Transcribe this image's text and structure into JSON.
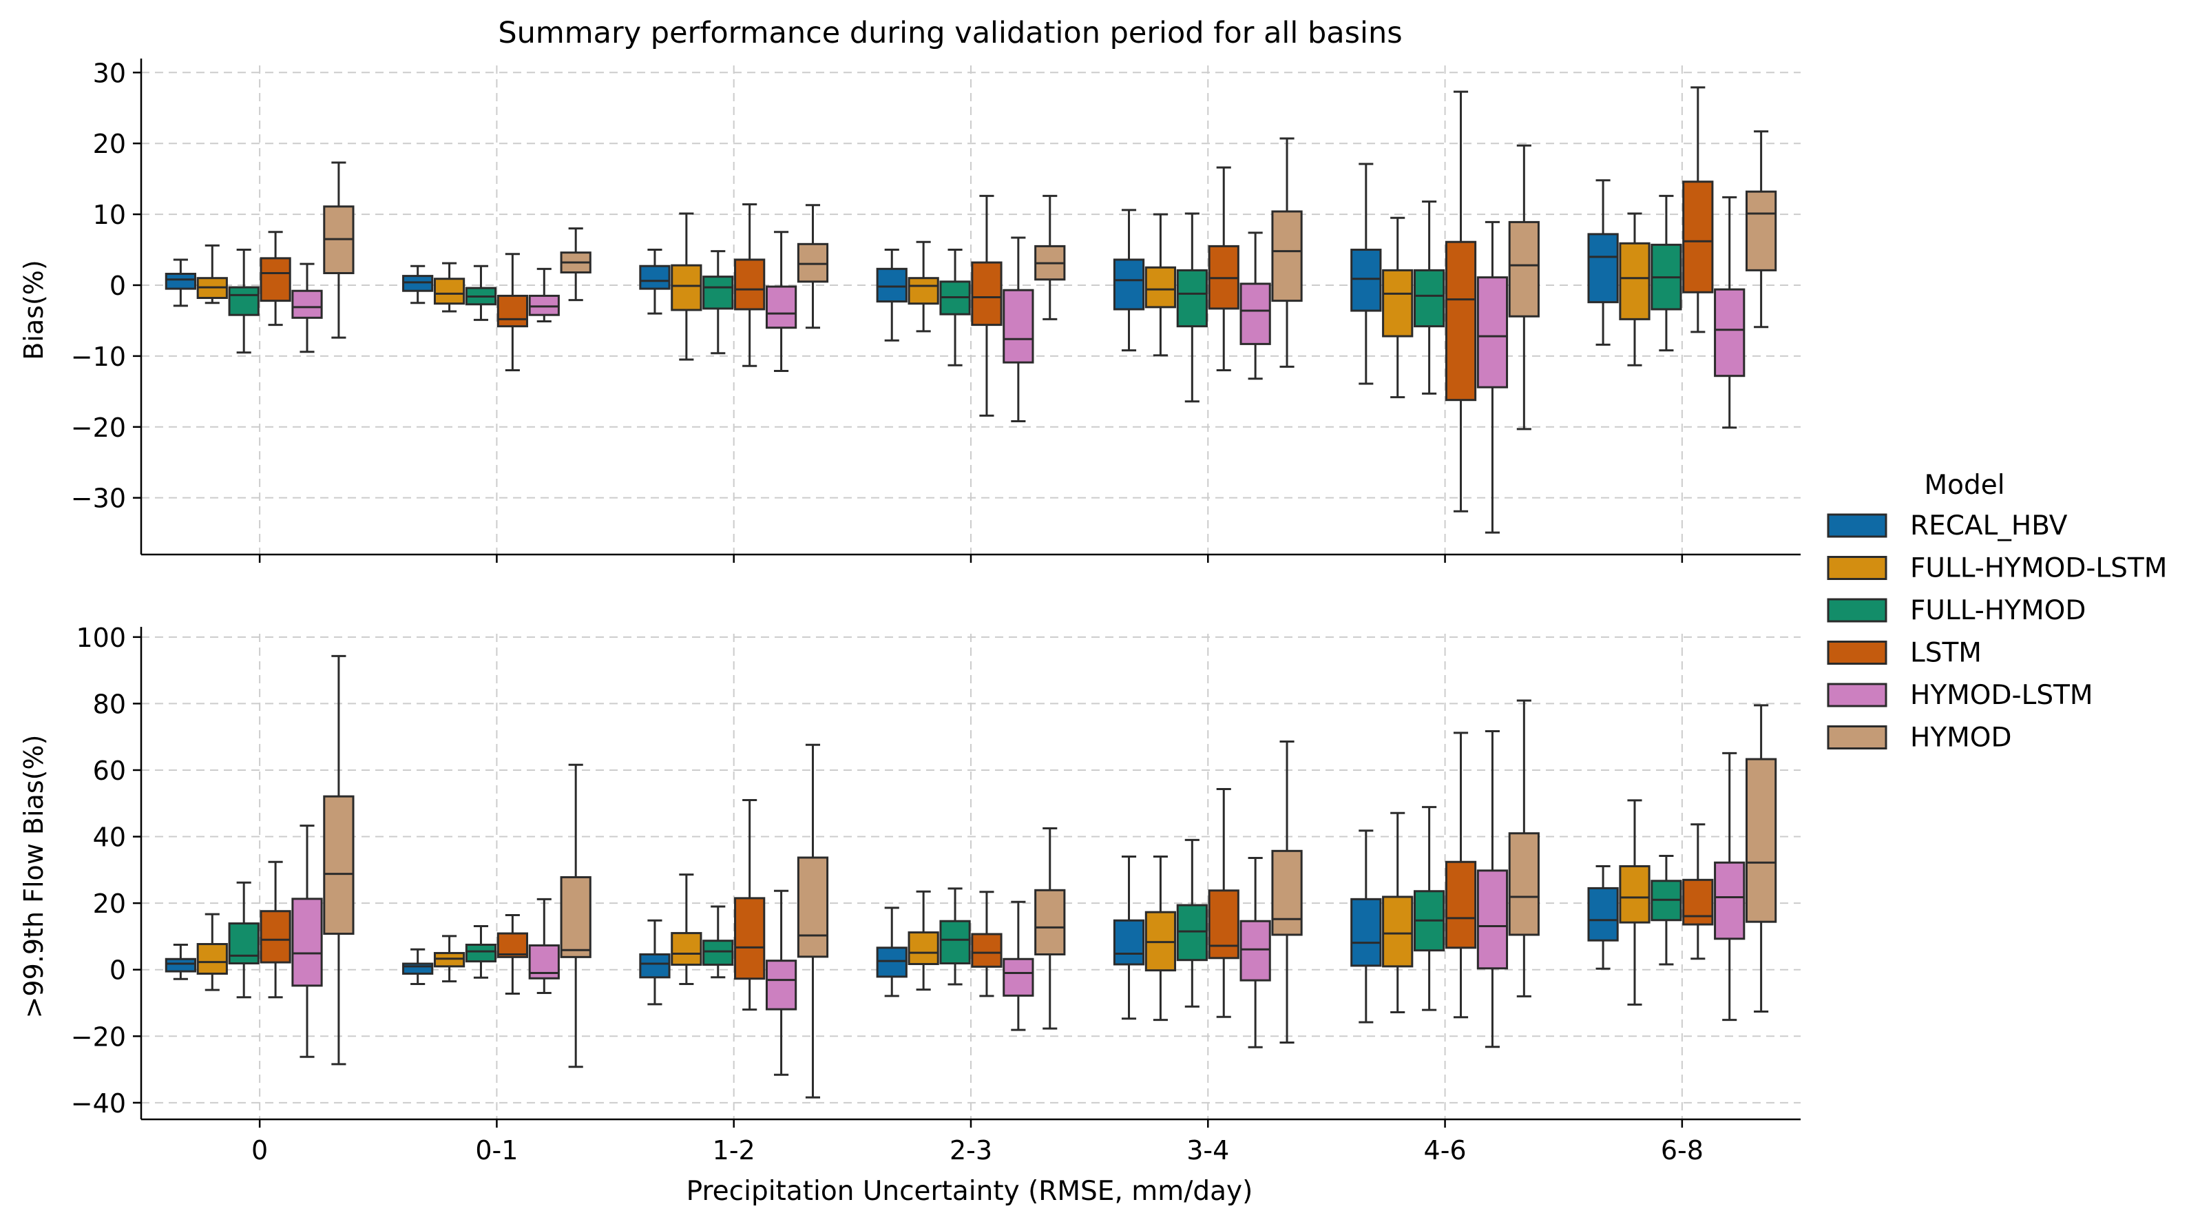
{
  "chart_data": {
    "type": "box",
    "title": "Summary performance during validation period for all basins",
    "xlabel": "Precipitation Uncertainty (RMSE, mm/day)",
    "categories": [
      "0",
      "0-1",
      "1-2",
      "2-3",
      "3-4",
      "4-6",
      "6-8"
    ],
    "legend": {
      "title": "Model",
      "placement": "right",
      "entries": [
        {
          "name": "RECAL_HBV",
          "color": "#0f6aa5"
        },
        {
          "name": "FULL-HYMOD-LSTM",
          "color": "#d38e11"
        },
        {
          "name": "FULL-HYMOD",
          "color": "#138d69"
        },
        {
          "name": "LSTM",
          "color": "#c45b0e"
        },
        {
          "name": "HYMOD-LSTM",
          "color": "#cc80c0"
        },
        {
          "name": "HYMOD",
          "color": "#c49b76"
        }
      ]
    },
    "grid": true,
    "panels": [
      {
        "ylabel": "Bias(%)",
        "ylim": [
          -38,
          31
        ],
        "yticks": [
          -30,
          -20,
          -10,
          0,
          10,
          20,
          30
        ],
        "ytick_labels": [
          "−30",
          "−20",
          "−10",
          "0",
          "10",
          "20",
          "30"
        ],
        "series": [
          {
            "name": "RECAL_HBV",
            "boxes": [
              [
                -2.9,
                -0.5,
                0.8,
                1.6,
                3.6
              ],
              [
                -2.5,
                -0.8,
                0.4,
                1.3,
                2.7
              ],
              [
                -4.0,
                -0.5,
                0.6,
                2.7,
                5.0
              ],
              [
                -7.8,
                -2.3,
                -0.2,
                2.3,
                5.0
              ],
              [
                -9.2,
                -3.4,
                0.7,
                3.6,
                10.6
              ],
              [
                -13.9,
                -3.6,
                0.9,
                5.0,
                17.1
              ],
              [
                -8.4,
                -2.4,
                4.0,
                7.2,
                14.8
              ]
            ]
          },
          {
            "name": "FULL-HYMOD-LSTM",
            "boxes": [
              [
                -2.5,
                -1.8,
                -0.3,
                1.0,
                5.6
              ],
              [
                -3.7,
                -2.6,
                -1.2,
                0.9,
                3.1
              ],
              [
                -10.5,
                -3.5,
                -0.1,
                2.8,
                10.1
              ],
              [
                -6.5,
                -2.6,
                -0.1,
                1.0,
                6.1
              ],
              [
                -9.9,
                -3.1,
                -0.6,
                2.5,
                10.0
              ],
              [
                -15.8,
                -7.2,
                -1.2,
                2.1,
                9.5
              ],
              [
                -11.3,
                -4.8,
                1.0,
                5.9,
                10.1
              ]
            ]
          },
          {
            "name": "FULL-HYMOD",
            "boxes": [
              [
                -9.5,
                -4.2,
                -1.4,
                -0.3,
                5.0
              ],
              [
                -4.9,
                -2.7,
                -1.6,
                -0.4,
                2.7
              ],
              [
                -9.6,
                -3.3,
                -0.3,
                1.2,
                4.8
              ],
              [
                -11.3,
                -4.1,
                -1.7,
                0.5,
                5.0
              ],
              [
                -16.4,
                -5.8,
                -1.2,
                2.1,
                10.1
              ],
              [
                -15.3,
                -5.8,
                -1.5,
                2.1,
                11.8
              ],
              [
                -9.2,
                -3.4,
                1.1,
                5.7,
                12.6
              ]
            ]
          },
          {
            "name": "LSTM",
            "boxes": [
              [
                -5.6,
                -2.2,
                1.7,
                3.8,
                7.5
              ],
              [
                -12.0,
                -5.8,
                -4.8,
                -1.5,
                4.4
              ],
              [
                -11.4,
                -3.4,
                -0.6,
                3.6,
                11.4
              ],
              [
                -18.4,
                -5.6,
                -1.7,
                3.2,
                12.6
              ],
              [
                -12.0,
                -3.3,
                1.0,
                5.5,
                16.6
              ],
              [
                -31.9,
                -16.2,
                -2.0,
                6.1,
                27.3
              ],
              [
                -6.6,
                -1.0,
                6.2,
                14.6,
                27.9
              ]
            ]
          },
          {
            "name": "HYMOD-LSTM",
            "boxes": [
              [
                -9.4,
                -4.6,
                -3.1,
                -0.8,
                3.0
              ],
              [
                -5.1,
                -4.2,
                -3.0,
                -1.5,
                2.3
              ],
              [
                -12.1,
                -6.0,
                -4.0,
                -0.2,
                7.5
              ],
              [
                -19.2,
                -10.9,
                -7.6,
                -0.7,
                6.7
              ],
              [
                -13.2,
                -8.3,
                -3.6,
                0.2,
                7.4
              ],
              [
                -34.9,
                -14.4,
                -7.2,
                1.1,
                8.9
              ],
              [
                -20.1,
                -12.8,
                -6.3,
                -0.6,
                12.4
              ]
            ]
          },
          {
            "name": "HYMOD",
            "boxes": [
              [
                -7.4,
                1.7,
                6.5,
                11.1,
                17.3
              ],
              [
                -2.1,
                1.8,
                3.2,
                4.6,
                8.0
              ],
              [
                -6.0,
                0.5,
                3.0,
                5.8,
                11.3
              ],
              [
                -4.8,
                0.8,
                3.1,
                5.5,
                12.6
              ],
              [
                -11.5,
                -2.2,
                4.8,
                10.4,
                20.7
              ],
              [
                -20.3,
                -4.4,
                2.8,
                8.9,
                19.7
              ],
              [
                -5.9,
                2.1,
                10.1,
                13.2,
                21.7
              ]
            ]
          }
        ]
      },
      {
        "ylabel": ">99.9th Flow Bias(%)",
        "ylim": [
          -45,
          101
        ],
        "yticks": [
          -40,
          -20,
          0,
          20,
          40,
          60,
          80,
          100
        ],
        "ytick_labels": [
          "−40",
          "−20",
          "0",
          "20",
          "40",
          "60",
          "80",
          "100"
        ],
        "series": [
          {
            "name": "RECAL_HBV",
            "boxes": [
              [
                -2.8,
                -0.5,
                1.8,
                3.2,
                7.5
              ],
              [
                -4.3,
                -1.2,
                1.0,
                1.8,
                6.1
              ],
              [
                -10.4,
                -2.3,
                1.8,
                4.6,
                14.8
              ],
              [
                -7.9,
                -2.1,
                2.6,
                6.6,
                18.6
              ],
              [
                -14.7,
                1.6,
                4.8,
                14.8,
                34.0
              ],
              [
                -15.8,
                1.2,
                8.1,
                21.2,
                41.8
              ],
              [
                0.3,
                8.8,
                14.9,
                24.5,
                31.1
              ]
            ]
          },
          {
            "name": "FULL-HYMOD-LSTM",
            "boxes": [
              [
                -6.1,
                -1.2,
                2.3,
                7.7,
                16.7
              ],
              [
                -3.5,
                1.0,
                3.3,
                5.0,
                10.1
              ],
              [
                -4.3,
                1.5,
                4.8,
                11.0,
                28.6
              ],
              [
                -6.0,
                1.7,
                5.1,
                11.2,
                23.5
              ],
              [
                -15.1,
                -0.2,
                8.3,
                17.3,
                34.0
              ],
              [
                -12.8,
                1.0,
                10.9,
                21.9,
                47.1
              ],
              [
                -10.5,
                14.2,
                21.7,
                31.1,
                50.9
              ]
            ]
          },
          {
            "name": "FULL-HYMOD",
            "boxes": [
              [
                -8.3,
                1.9,
                4.2,
                13.9,
                26.2
              ],
              [
                -2.4,
                2.5,
                5.5,
                7.5,
                13.1
              ],
              [
                -2.3,
                1.5,
                5.5,
                8.7,
                19.0
              ],
              [
                -4.4,
                1.9,
                9.0,
                14.6,
                24.4
              ],
              [
                -11.1,
                2.9,
                11.5,
                19.4,
                39.0
              ],
              [
                -12.1,
                5.8,
                14.8,
                23.6,
                48.9
              ],
              [
                1.6,
                14.9,
                21.0,
                26.7,
                34.2
              ]
            ]
          },
          {
            "name": "LSTM",
            "boxes": [
              [
                -8.3,
                2.2,
                9.0,
                17.6,
                32.4
              ],
              [
                -7.2,
                3.8,
                4.6,
                10.9,
                16.4
              ],
              [
                -12.0,
                -2.7,
                6.7,
                21.5,
                51.0
              ],
              [
                -7.9,
                0.9,
                5.1,
                10.7,
                23.4
              ],
              [
                -14.2,
                3.5,
                7.2,
                23.8,
                54.3
              ],
              [
                -14.3,
                6.6,
                15.5,
                32.4,
                71.2
              ],
              [
                3.3,
                13.6,
                16.1,
                27.0,
                43.7
              ]
            ]
          },
          {
            "name": "HYMOD-LSTM",
            "boxes": [
              [
                -26.2,
                -4.8,
                4.9,
                21.3,
                43.3
              ],
              [
                -7.0,
                -2.6,
                -1.0,
                7.3,
                21.2
              ],
              [
                -31.6,
                -11.9,
                -3.1,
                2.7,
                23.7
              ],
              [
                -18.1,
                -7.8,
                -1.0,
                3.2,
                20.4
              ],
              [
                -23.3,
                -3.2,
                6.1,
                14.6,
                33.6
              ],
              [
                -23.2,
                0.4,
                13.1,
                29.8,
                71.7
              ],
              [
                -15.1,
                9.3,
                21.8,
                32.2,
                65.1
              ]
            ]
          },
          {
            "name": "HYMOD",
            "boxes": [
              [
                -28.4,
                10.8,
                28.8,
                52.1,
                94.3
              ],
              [
                -29.2,
                3.8,
                5.9,
                27.8,
                61.6
              ],
              [
                -38.4,
                3.9,
                10.3,
                33.7,
                67.6
              ],
              [
                -17.7,
                4.6,
                12.7,
                23.9,
                42.5
              ],
              [
                -21.9,
                10.5,
                15.2,
                35.7,
                68.6
              ],
              [
                -8.0,
                10.5,
                21.9,
                41.0,
                80.9
              ],
              [
                -12.6,
                14.4,
                32.2,
                63.3,
                79.5
              ]
            ]
          }
        ]
      }
    ]
  }
}
